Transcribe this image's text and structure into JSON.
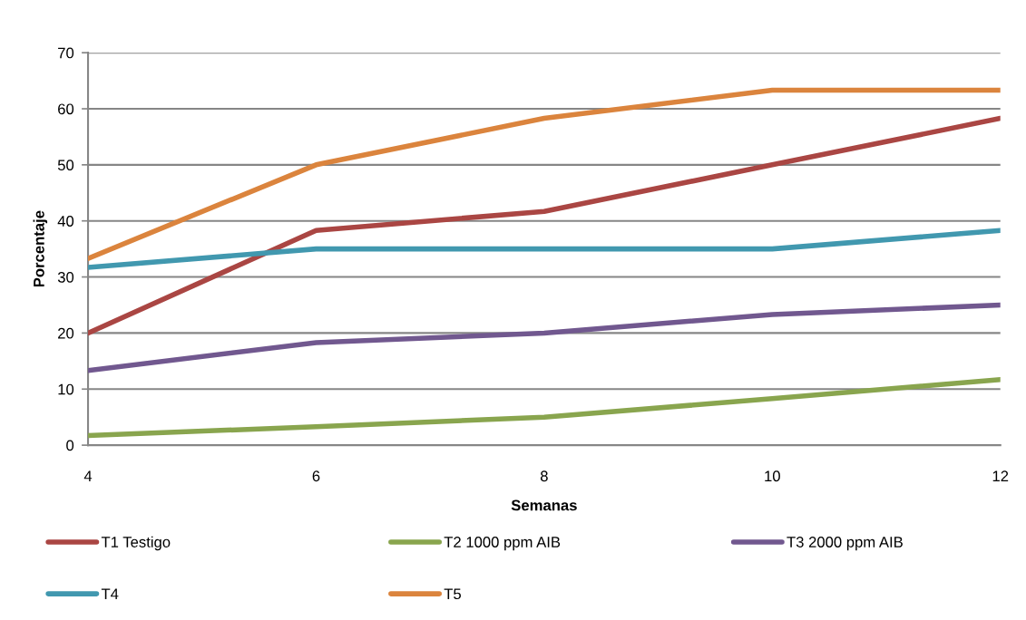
{
  "chart_data": {
    "type": "line",
    "xlabel": "Semanas",
    "ylabel": "Porcentaje",
    "x": [
      4,
      6,
      8,
      10,
      12
    ],
    "series": [
      {
        "name": "T1 Testigo",
        "color": "#aa4643",
        "values": [
          20,
          38.3,
          41.7,
          50,
          58.3
        ]
      },
      {
        "name": "T2 1000 ppm AIB",
        "color": "#89a54e",
        "values": [
          1.7,
          3.3,
          5,
          8.3,
          11.7
        ]
      },
      {
        "name": "T3 2000 ppm AIB",
        "color": "#71588f",
        "values": [
          13.3,
          18.3,
          20,
          23.3,
          25
        ]
      },
      {
        "name": "T4",
        "color": "#4198af",
        "values": [
          31.7,
          35,
          35,
          35,
          38.3
        ]
      },
      {
        "name": "T5",
        "color": "#db843d",
        "values": [
          33.3,
          50,
          58.3,
          63.3,
          63.3
        ]
      }
    ],
    "xlim": [
      4,
      12
    ],
    "xticks": [
      4,
      6,
      8,
      10,
      12
    ],
    "ylim": [
      0,
      70
    ],
    "yticks": [
      0,
      10,
      20,
      30,
      40,
      50,
      60,
      70
    ],
    "grid": "y",
    "legend": "bottom",
    "marker": "none",
    "line_style": "solid"
  }
}
